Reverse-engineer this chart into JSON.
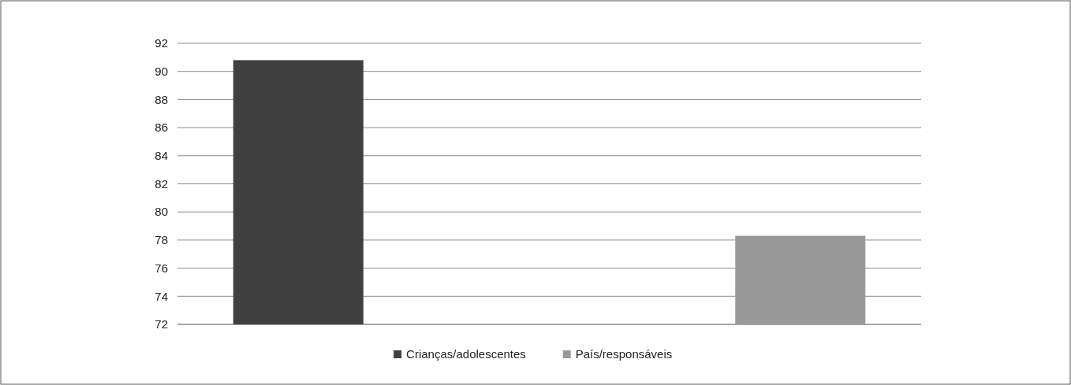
{
  "chart_data": {
    "type": "bar",
    "categories": [
      null,
      null
    ],
    "series": [
      {
        "name": "Crianças/adolescentes",
        "color": "#404040",
        "values": [
          90.8,
          null
        ]
      },
      {
        "name": "País/responsáveis",
        "color": "#999999",
        "values": [
          null,
          78.3
        ]
      }
    ],
    "ylim": [
      72,
      92
    ],
    "yticks": [
      72,
      74,
      76,
      78,
      80,
      82,
      84,
      86,
      88,
      90,
      92
    ],
    "grid": "y",
    "legend": "bottom"
  }
}
